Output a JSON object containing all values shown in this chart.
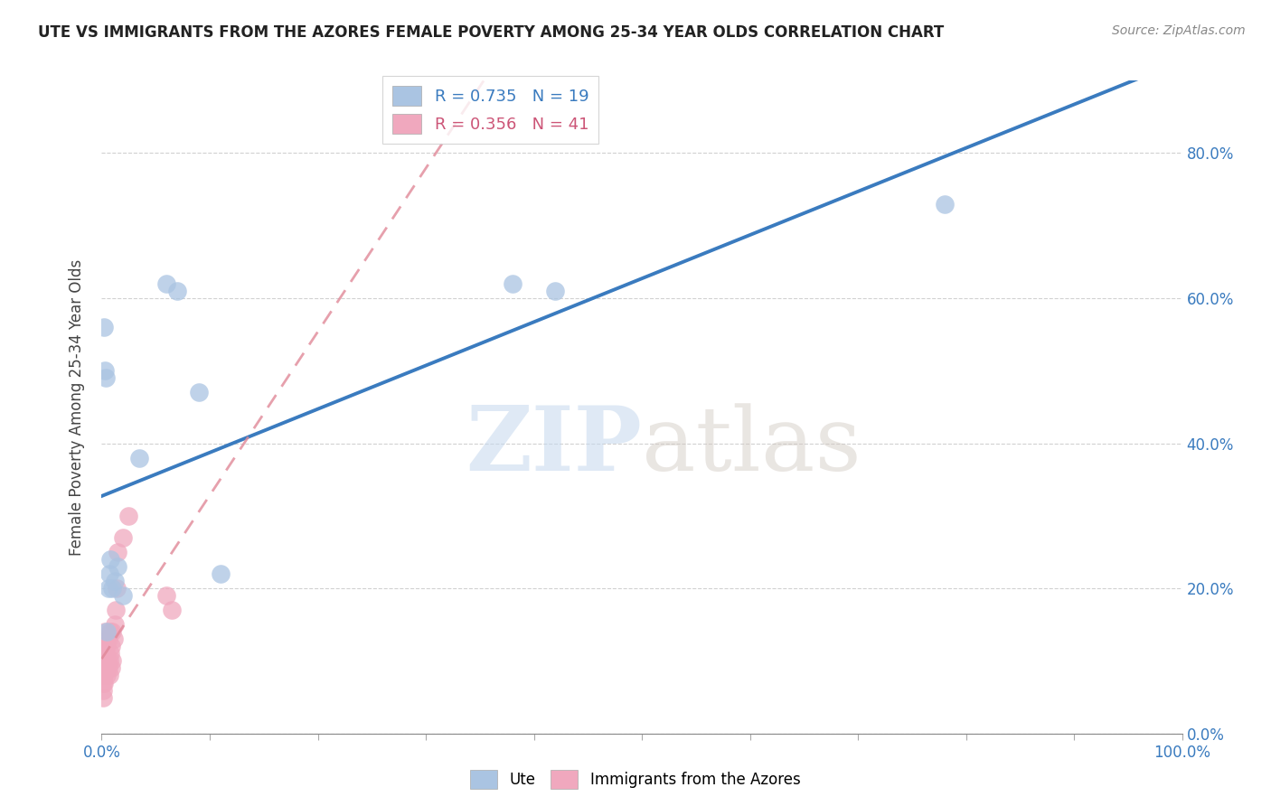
{
  "title": "UTE VS IMMIGRANTS FROM THE AZORES FEMALE POVERTY AMONG 25-34 YEAR OLDS CORRELATION CHART",
  "source": "Source: ZipAtlas.com",
  "ylabel": "Female Poverty Among 25-34 Year Olds",
  "xlim": [
    0,
    1.0
  ],
  "ylim": [
    0,
    0.9
  ],
  "xticks": [
    0.0,
    0.1,
    0.2,
    0.3,
    0.4,
    0.5,
    0.6,
    0.7,
    0.8,
    0.9,
    1.0
  ],
  "yticks": [
    0.0,
    0.2,
    0.4,
    0.6,
    0.8
  ],
  "ytick_labels_right": [
    "0.0%",
    "20.0%",
    "40.0%",
    "60.0%",
    "80.0%"
  ],
  "legend_labels": [
    "Ute",
    "Immigrants from the Azores"
  ],
  "r_ute": 0.735,
  "n_ute": 19,
  "r_azores": 0.356,
  "n_azores": 41,
  "ute_color": "#aac4e2",
  "azores_color": "#f0a8be",
  "ute_line_color": "#3a7bbf",
  "azores_line_color": "#e08898",
  "watermark_zip": "ZIP",
  "watermark_atlas": "atlas",
  "background_color": "#ffffff",
  "ute_x": [
    0.002,
    0.003,
    0.004,
    0.005,
    0.006,
    0.007,
    0.008,
    0.01,
    0.012,
    0.015,
    0.02,
    0.035,
    0.06,
    0.07,
    0.09,
    0.11,
    0.38,
    0.42,
    0.78
  ],
  "ute_y": [
    0.56,
    0.5,
    0.49,
    0.14,
    0.2,
    0.22,
    0.24,
    0.2,
    0.21,
    0.23,
    0.19,
    0.38,
    0.62,
    0.61,
    0.47,
    0.22,
    0.62,
    0.61,
    0.73
  ],
  "azores_x": [
    0.001,
    0.001,
    0.001,
    0.001,
    0.001,
    0.001,
    0.001,
    0.002,
    0.002,
    0.002,
    0.002,
    0.002,
    0.002,
    0.003,
    0.003,
    0.003,
    0.003,
    0.004,
    0.004,
    0.005,
    0.005,
    0.005,
    0.006,
    0.006,
    0.007,
    0.007,
    0.008,
    0.008,
    0.009,
    0.009,
    0.01,
    0.01,
    0.011,
    0.012,
    0.013,
    0.014,
    0.015,
    0.02,
    0.025,
    0.06,
    0.065
  ],
  "azores_y": [
    0.08,
    0.09,
    0.1,
    0.11,
    0.06,
    0.07,
    0.05,
    0.09,
    0.1,
    0.11,
    0.08,
    0.12,
    0.07,
    0.1,
    0.12,
    0.14,
    0.09,
    0.13,
    0.11,
    0.1,
    0.08,
    0.12,
    0.09,
    0.13,
    0.1,
    0.08,
    0.11,
    0.14,
    0.09,
    0.12,
    0.14,
    0.1,
    0.13,
    0.15,
    0.17,
    0.2,
    0.25,
    0.27,
    0.3,
    0.19,
    0.17
  ]
}
